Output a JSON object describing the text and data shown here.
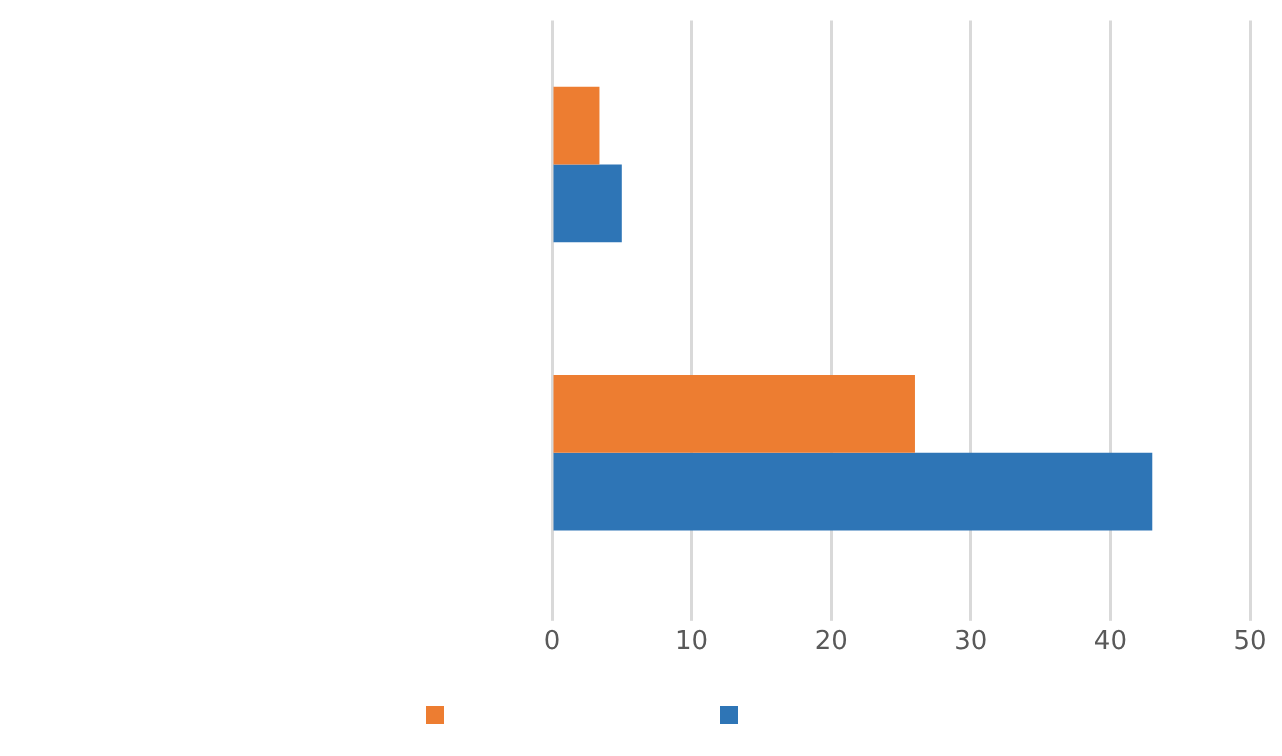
{
  "chart_data": {
    "type": "bar",
    "orientation": "horizontal",
    "categories": [
      null,
      null
    ],
    "series": [
      {
        "color": "#ed7d31",
        "values": [
          3.4,
          26
        ]
      },
      {
        "color": "#2e75b6",
        "values": [
          5,
          43
        ]
      }
    ],
    "xlim": [
      0,
      50
    ],
    "xticks": [
      0,
      10,
      20,
      30,
      40,
      50
    ],
    "grid": "x"
  }
}
